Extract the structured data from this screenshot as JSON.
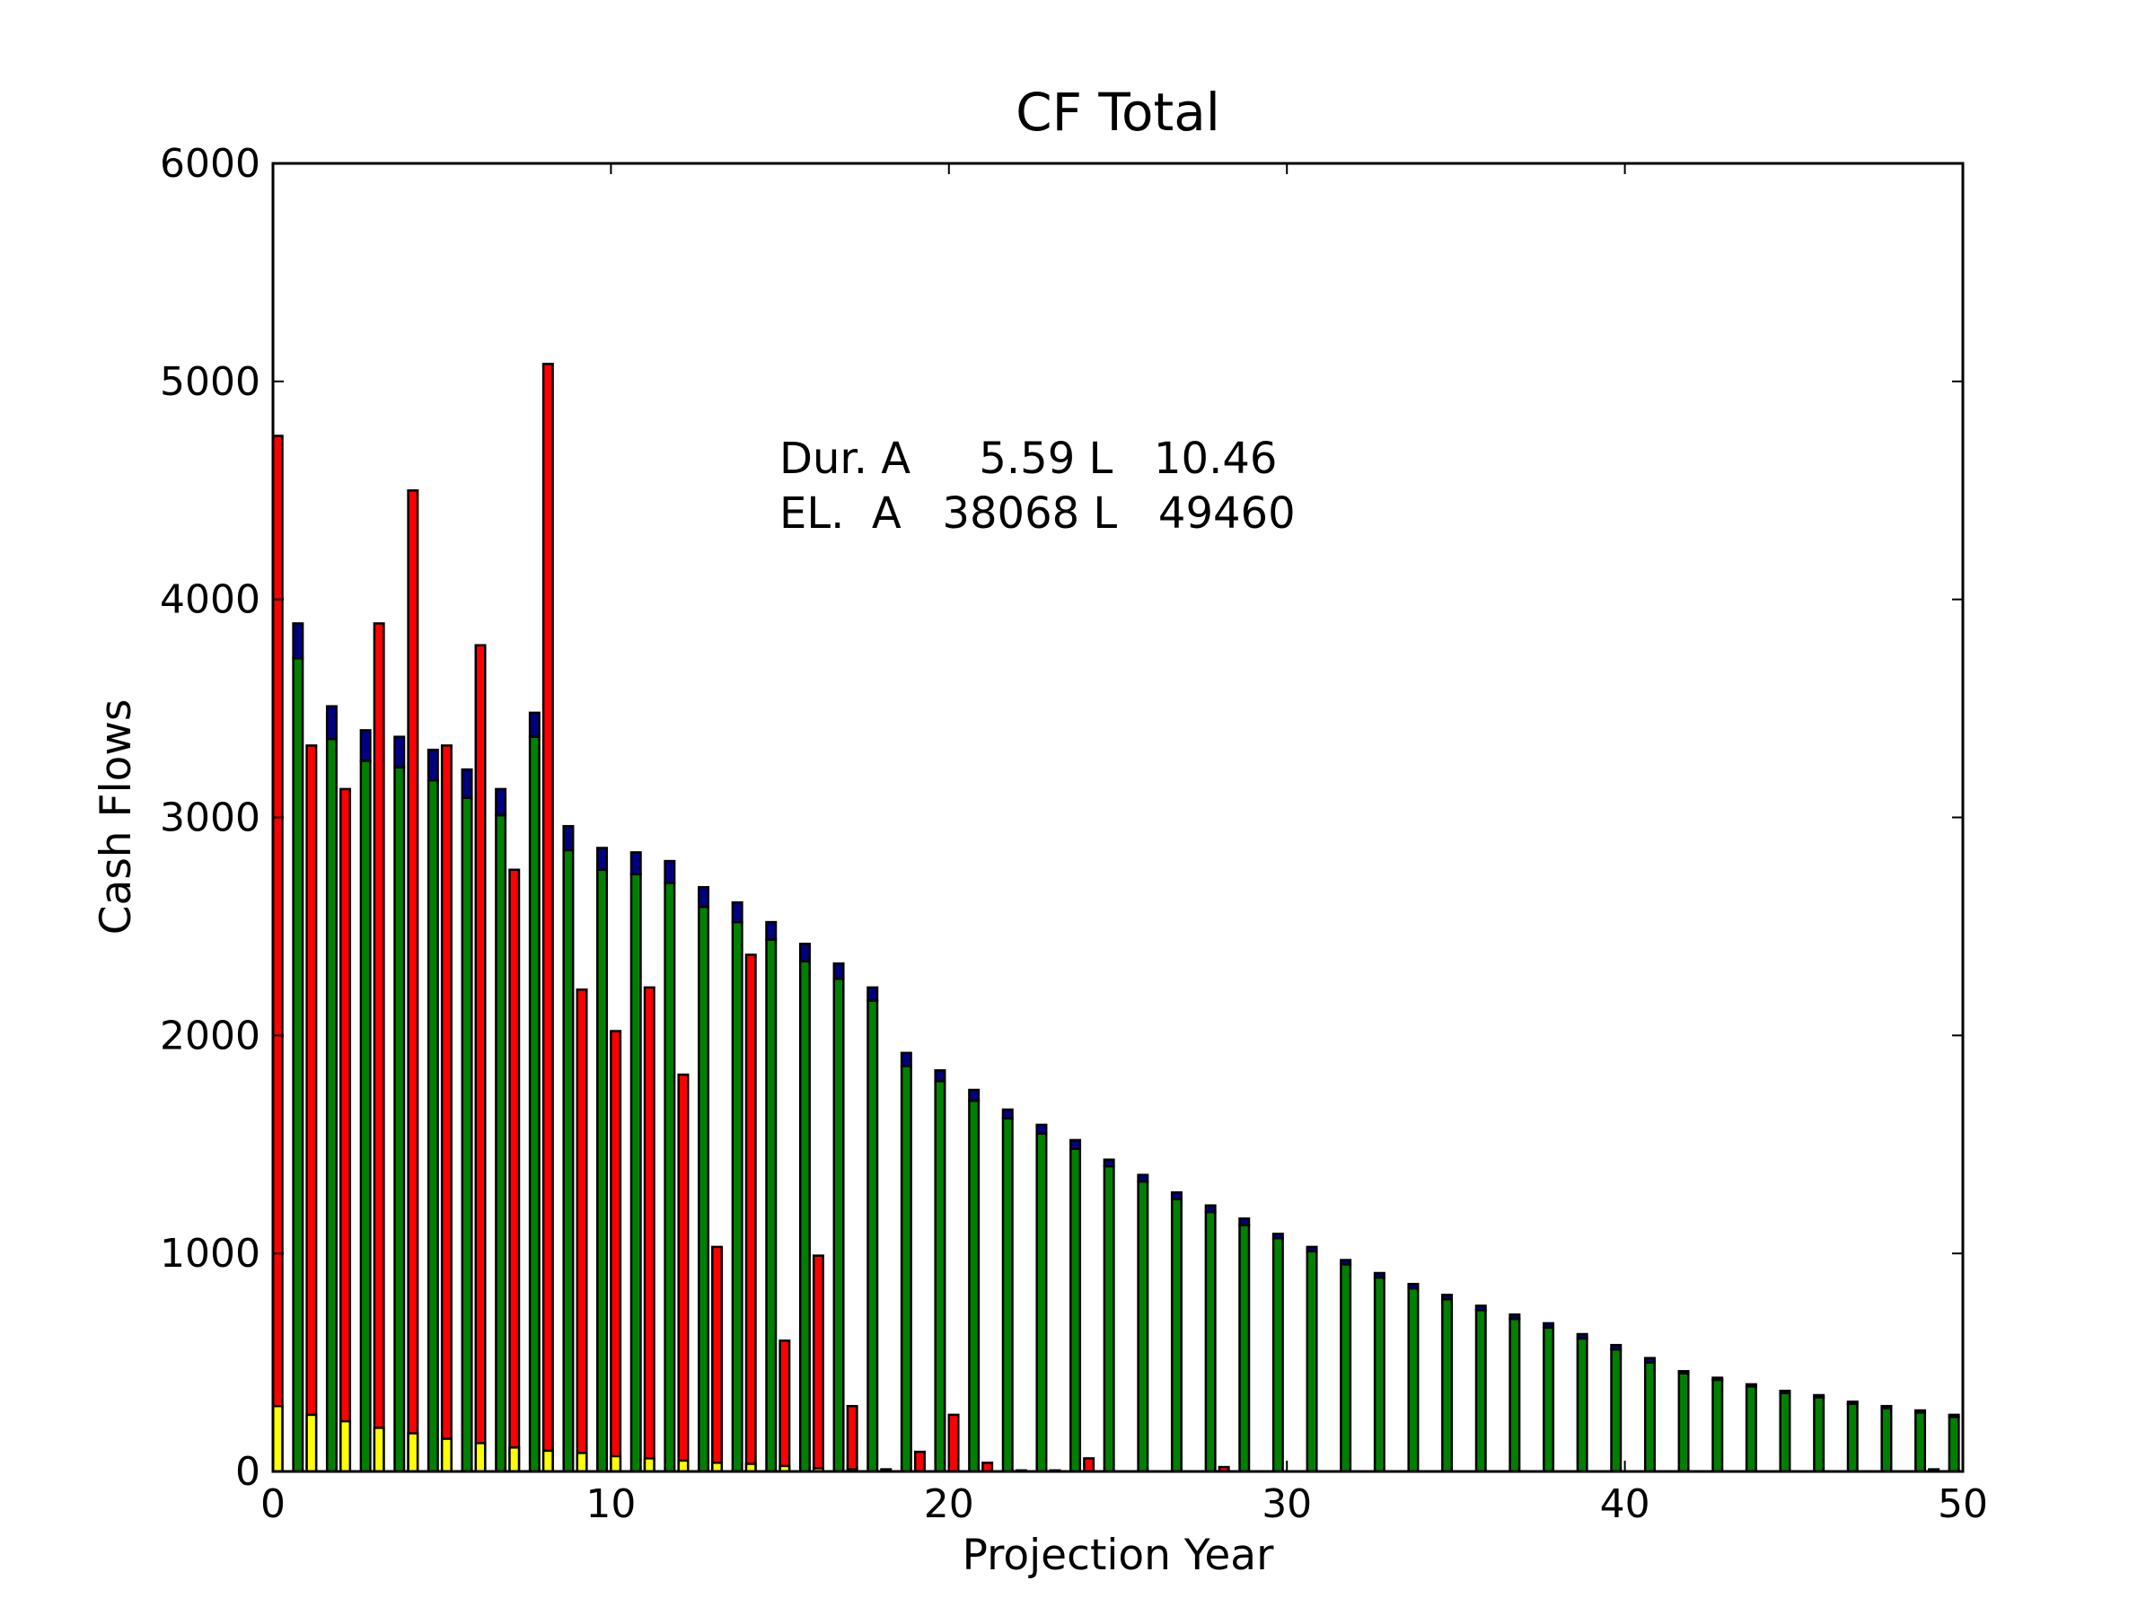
{
  "chart_data": {
    "type": "bar",
    "title": "CF Total",
    "xlabel": "Projection Year",
    "ylabel": "Cash Flows",
    "xlim": [
      0,
      50
    ],
    "ylim": [
      0,
      6000
    ],
    "xticks": [
      "0",
      "10",
      "20",
      "30",
      "40",
      "50"
    ],
    "yticks": [
      "0",
      "1000",
      "2000",
      "3000",
      "4000",
      "5000",
      "6000"
    ],
    "grid": false,
    "legend": null,
    "colors": {
      "red_series": "#ff0000",
      "yellow_series": "#ffff00",
      "green_series": "#008000",
      "blue_series": "#000080"
    },
    "series": [
      {
        "color": "#ff0000",
        "x_offset": 0.0,
        "x": [
          0,
          1,
          2,
          3,
          4,
          5,
          6,
          7,
          8,
          9,
          10,
          11,
          12,
          13,
          14,
          15,
          16,
          17,
          18,
          19,
          20,
          21,
          22,
          23,
          24,
          25,
          26,
          27,
          28,
          29,
          30,
          31,
          32,
          33,
          34,
          35,
          36,
          37,
          38,
          39,
          40,
          41,
          42,
          43,
          44,
          45,
          46,
          47,
          48,
          49
        ],
        "values": [
          4750,
          3330,
          3130,
          3890,
          4500,
          3330,
          3790,
          2760,
          5080,
          2210,
          2020,
          2220,
          1820,
          1030,
          2370,
          600,
          990,
          300,
          10,
          90,
          260,
          40,
          5,
          5,
          60,
          0,
          0,
          0,
          20,
          0,
          0,
          0,
          0,
          0,
          0,
          0,
          0,
          0,
          0,
          0,
          0,
          0,
          0,
          0,
          0,
          0,
          0,
          0,
          0,
          10
        ]
      },
      {
        "color": "#ffff00",
        "x_offset": 0.0,
        "x": [
          0,
          1,
          2,
          3,
          4,
          5,
          6,
          7,
          8,
          9,
          10,
          11,
          12,
          13,
          14,
          15,
          16,
          17
        ],
        "values": [
          300,
          260,
          230,
          200,
          175,
          150,
          130,
          110,
          95,
          85,
          70,
          60,
          50,
          40,
          35,
          25,
          15,
          10
        ]
      },
      {
        "color": "#008000",
        "x_offset": 0.6,
        "x": [
          0,
          1,
          2,
          3,
          4,
          5,
          6,
          7,
          8,
          9,
          10,
          11,
          12,
          13,
          14,
          15,
          16,
          17,
          18,
          19,
          20,
          21,
          22,
          23,
          24,
          25,
          26,
          27,
          28,
          29,
          30,
          31,
          32,
          33,
          34,
          35,
          36,
          37,
          38,
          39,
          40,
          41,
          42,
          43,
          44,
          45,
          46,
          47,
          48,
          49
        ],
        "values": [
          3730,
          3360,
          3260,
          3230,
          3170,
          3090,
          3010,
          3370,
          2850,
          2760,
          2740,
          2700,
          2590,
          2520,
          2440,
          2340,
          2260,
          2160,
          1860,
          1790,
          1700,
          1620,
          1550,
          1480,
          1400,
          1330,
          1250,
          1190,
          1130,
          1070,
          1010,
          950,
          890,
          840,
          790,
          740,
          700,
          660,
          610,
          560,
          500,
          450,
          420,
          390,
          360,
          340,
          310,
          290,
          270,
          250
        ]
      },
      {
        "color": "#000080",
        "x_offset": 0.6,
        "x": [
          0,
          1,
          2,
          3,
          4,
          5,
          6,
          7,
          8,
          9,
          10,
          11,
          12,
          13,
          14,
          15,
          16,
          17,
          18,
          19,
          20,
          21,
          22,
          23,
          24,
          25,
          26,
          27,
          28,
          29,
          30,
          31,
          32,
          33,
          34,
          35,
          36,
          37,
          38,
          39,
          40,
          41,
          42,
          43,
          44,
          45,
          46,
          47,
          48,
          49
        ],
        "values": [
          160,
          150,
          140,
          140,
          140,
          130,
          120,
          110,
          110,
          100,
          100,
          100,
          90,
          90,
          80,
          80,
          70,
          60,
          60,
          50,
          50,
          40,
          40,
          40,
          30,
          30,
          30,
          30,
          30,
          20,
          20,
          20,
          20,
          20,
          20,
          20,
          20,
          20,
          20,
          20,
          20,
          10,
          10,
          10,
          10,
          10,
          10,
          10,
          10,
          10
        ]
      }
    ],
    "annotations": [
      "Dur. A     5.59 L   10.46",
      "EL.  A   38068 L   49460"
    ]
  }
}
